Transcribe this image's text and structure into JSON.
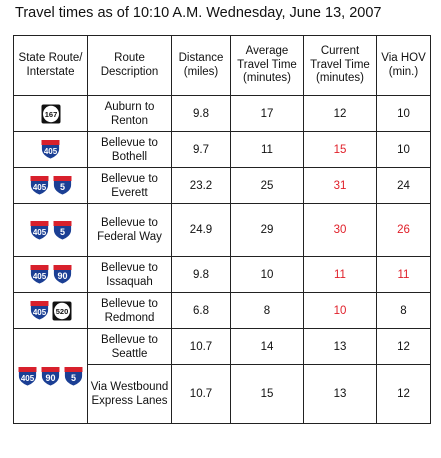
{
  "title": "Travel times as of 10:10 A.M. Wednesday, June 13, 2007",
  "colors": {
    "red": "#e0202a",
    "interstate_blue": "#1b3f94",
    "interstate_red": "#d8202c"
  },
  "headers": [
    "State Route/ Interstate",
    "Route Description",
    "Distance (miles)",
    "Average Travel Time (minutes)",
    "Current Travel Time (minutes)",
    "Via HOV (min.)"
  ],
  "rows": [
    {
      "shields": [
        {
          "type": "state",
          "num": "167"
        }
      ],
      "desc": "Auburn to Renton",
      "distance": "9.8",
      "avg": "17",
      "current": "12",
      "current_color": "black",
      "hov": "10",
      "hov_color": "black"
    },
    {
      "shields": [
        {
          "type": "interstate",
          "num": "405"
        }
      ],
      "desc": "Bellevue to Bothell",
      "distance": "9.7",
      "avg": "11",
      "current": "15",
      "current_color": "red",
      "hov": "10",
      "hov_color": "black"
    },
    {
      "shields": [
        {
          "type": "interstate",
          "num": "405"
        },
        {
          "type": "interstate",
          "num": "5"
        }
      ],
      "desc": "Bellevue to Everett",
      "distance": "23.2",
      "avg": "25",
      "current": "31",
      "current_color": "red",
      "hov": "24",
      "hov_color": "black"
    },
    {
      "shields": [
        {
          "type": "interstate",
          "num": "405"
        },
        {
          "type": "interstate",
          "num": "5"
        }
      ],
      "desc": "Bellevue to Federal Way",
      "distance": "24.9",
      "avg": "29",
      "current": "30",
      "current_color": "red",
      "hov": "26",
      "hov_color": "red"
    },
    {
      "shields": [
        {
          "type": "interstate",
          "num": "405"
        },
        {
          "type": "interstate",
          "num": "90"
        }
      ],
      "desc": "Bellevue to Issaquah",
      "distance": "9.8",
      "avg": "10",
      "current": "11",
      "current_color": "red",
      "hov": "11",
      "hov_color": "red"
    },
    {
      "shields": [
        {
          "type": "interstate",
          "num": "405"
        },
        {
          "type": "state",
          "num": "520"
        }
      ],
      "desc": "Bellevue to Redmond",
      "distance": "6.8",
      "avg": "8",
      "current": "10",
      "current_color": "red",
      "hov": "8",
      "hov_color": "black"
    },
    {
      "shields": [
        {
          "type": "interstate",
          "num": "405"
        },
        {
          "type": "interstate",
          "num": "90"
        },
        {
          "type": "interstate",
          "num": "5"
        }
      ],
      "desc": "Bellevue to Seattle",
      "distance": "10.7",
      "avg": "14",
      "current": "13",
      "current_color": "black",
      "hov": "12",
      "hov_color": "black"
    },
    {
      "shields": [],
      "desc": "Via Westbound Express Lanes",
      "distance": "10.7",
      "avg": "15",
      "current": "13",
      "current_color": "black",
      "hov": "12",
      "hov_color": "black"
    }
  ]
}
